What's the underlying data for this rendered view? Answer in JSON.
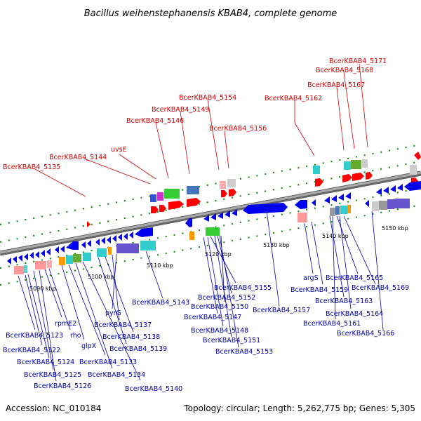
{
  "title": "Bacillus weihenstephanensis KBAB4, complete genome",
  "accession": "Accession: NC_010184",
  "summary": "Topology: circular; Length: 5,262,775 bp; Genes: 5,305",
  "colors": {
    "top_strand_label": "#cc0000",
    "bottom_strand_label": "#0000aa",
    "top_strand_gene": "#ff0000",
    "bottom_strand_gene": "#0000ee",
    "backbone": "#888888",
    "tick": "#008800"
  },
  "kbp_labels": [
    "5090 kbp",
    "5100 kbp",
    "5110 kbp",
    "5120 kbp",
    "5130 kbp",
    "5140 kbp",
    "5150 kbp"
  ],
  "top_labels": [
    "BcerKBAB4_5135",
    "BcerKBAB4_5144",
    "uvsE",
    "BcerKBAB4_5146",
    "BcerKBAB4_5149",
    "BcerKBAB4_5154",
    "BcerKBAB4_5156",
    "BcerKBAB4_5162",
    "BcerKBAB4_5167",
    "BcerKBAB4_5168",
    "BcerKBAB4_5171"
  ],
  "bottom_labels": [
    "BcerKBAB4_5123",
    "rpmE2",
    "rho",
    "BcerKBAB4_5122",
    "BcerKBAB4_5124",
    "BcerKBAB4_5125",
    "BcerKBAB4_5126",
    "glpX",
    "BcerKBAB4_5133",
    "BcerKBAB4_5134",
    "BcerKBAB4_5140",
    "BcerKBAB4_5139",
    "BcerKBAB4_5138",
    "BcerKBAB4_5137",
    "pyrG",
    "BcerKBAB4_5143",
    "BcerKBAB4_5155",
    "BcerKBAB4_5152",
    "BcerKBAB4_5150",
    "BcerKBAB4_5147",
    "BcerKBAB4_5148",
    "BcerKBAB4_5151",
    "BcerKBAB4_5153",
    "BcerKBAB4_5157",
    "argS",
    "BcerKBAB4_5159",
    "BcerKBAB4_5165",
    "BcerKBAB4_5169",
    "BcerKBAB4_5163",
    "BcerKBAB4_5164",
    "BcerKBAB4_5161",
    "BcerKBAB4_5166"
  ]
}
